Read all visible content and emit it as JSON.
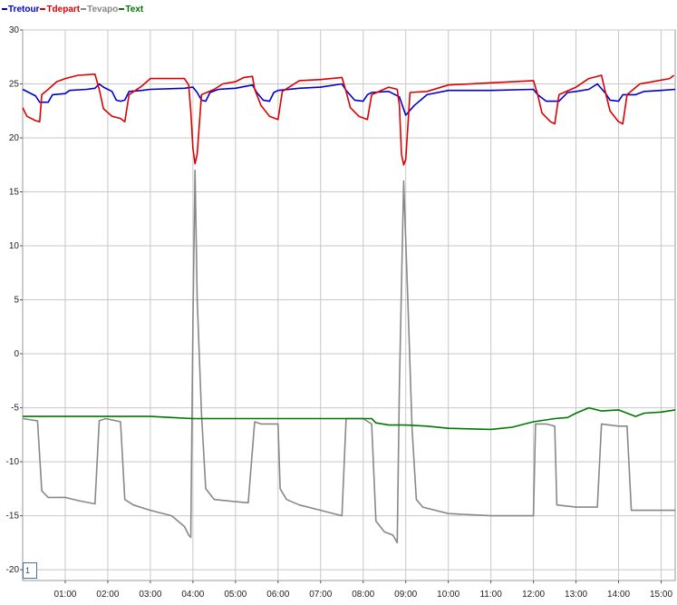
{
  "chart_data": {
    "type": "line",
    "title": "",
    "xlabel": "",
    "ylabel": "",
    "xlim": [
      0.0,
      15.33
    ],
    "ylim": [
      -21,
      30
    ],
    "y_ticks": [
      30,
      25,
      20,
      15,
      10,
      5,
      0,
      -5,
      -10,
      -15,
      -20
    ],
    "x_ticks": [
      {
        "value": 1,
        "label": "01:00"
      },
      {
        "value": 2,
        "label": "02:00"
      },
      {
        "value": 3,
        "label": "03:00"
      },
      {
        "value": 4,
        "label": "04:00"
      },
      {
        "value": 5,
        "label": "05:00"
      },
      {
        "value": 6,
        "label": "06:00"
      },
      {
        "value": 7,
        "label": "07:00"
      },
      {
        "value": 8,
        "label": "08:00"
      },
      {
        "value": 9,
        "label": "09:00"
      },
      {
        "value": 10,
        "label": "10:00"
      },
      {
        "value": 11,
        "label": "11:00"
      },
      {
        "value": 12,
        "label": "12:00"
      },
      {
        "value": 13,
        "label": "13:00"
      },
      {
        "value": 14,
        "label": "14:00"
      },
      {
        "value": 15,
        "label": "15:00"
      }
    ],
    "grid": true,
    "legend_position": "top-left",
    "series": [
      {
        "name": "Tretour",
        "color": "#0000cc",
        "points": [
          [
            0.0,
            24.5
          ],
          [
            0.3,
            23.9
          ],
          [
            0.4,
            23.3
          ],
          [
            0.6,
            23.3
          ],
          [
            0.7,
            24.0
          ],
          [
            1.0,
            24.1
          ],
          [
            1.1,
            24.4
          ],
          [
            1.5,
            24.5
          ],
          [
            1.7,
            24.6
          ],
          [
            1.8,
            25.0
          ],
          [
            1.9,
            24.7
          ],
          [
            2.1,
            24.3
          ],
          [
            2.2,
            23.5
          ],
          [
            2.3,
            23.4
          ],
          [
            2.4,
            23.5
          ],
          [
            2.5,
            24.3
          ],
          [
            2.8,
            24.4
          ],
          [
            3.0,
            24.5
          ],
          [
            3.8,
            24.6
          ],
          [
            4.0,
            24.7
          ],
          [
            4.1,
            24.2
          ],
          [
            4.2,
            23.5
          ],
          [
            4.3,
            23.4
          ],
          [
            4.4,
            24.2
          ],
          [
            4.6,
            24.5
          ],
          [
            5.0,
            24.6
          ],
          [
            5.4,
            24.9
          ],
          [
            5.5,
            24.2
          ],
          [
            5.65,
            23.5
          ],
          [
            5.8,
            23.4
          ],
          [
            5.9,
            24.2
          ],
          [
            6.0,
            24.4
          ],
          [
            6.5,
            24.6
          ],
          [
            7.0,
            24.7
          ],
          [
            7.5,
            25.0
          ],
          [
            7.6,
            24.4
          ],
          [
            7.8,
            23.5
          ],
          [
            8.0,
            23.4
          ],
          [
            8.1,
            24.0
          ],
          [
            8.2,
            24.2
          ],
          [
            8.6,
            24.3
          ],
          [
            8.85,
            23.8
          ],
          [
            9.0,
            22.1
          ],
          [
            9.2,
            23.0
          ],
          [
            9.5,
            24.0
          ],
          [
            10.0,
            24.4
          ],
          [
            11.0,
            24.4
          ],
          [
            12.0,
            24.5
          ],
          [
            12.1,
            24.0
          ],
          [
            12.3,
            23.4
          ],
          [
            12.6,
            23.4
          ],
          [
            12.8,
            24.2
          ],
          [
            13.0,
            24.3
          ],
          [
            13.3,
            24.5
          ],
          [
            13.5,
            25.0
          ],
          [
            13.7,
            24.1
          ],
          [
            13.8,
            23.5
          ],
          [
            14.0,
            23.4
          ],
          [
            14.1,
            24.0
          ],
          [
            14.4,
            24.0
          ],
          [
            14.6,
            24.3
          ],
          [
            15.0,
            24.4
          ],
          [
            15.33,
            24.5
          ]
        ]
      },
      {
        "name": "Tdepart",
        "color": "#dd0000",
        "points": [
          [
            0.0,
            22.8
          ],
          [
            0.1,
            22.0
          ],
          [
            0.3,
            21.6
          ],
          [
            0.4,
            21.5
          ],
          [
            0.45,
            24.0
          ],
          [
            0.6,
            24.5
          ],
          [
            0.8,
            25.2
          ],
          [
            1.0,
            25.5
          ],
          [
            1.3,
            25.8
          ],
          [
            1.7,
            25.9
          ],
          [
            1.8,
            24.5
          ],
          [
            1.9,
            22.7
          ],
          [
            2.1,
            22.0
          ],
          [
            2.3,
            21.8
          ],
          [
            2.4,
            21.5
          ],
          [
            2.5,
            24.0
          ],
          [
            2.8,
            24.8
          ],
          [
            3.0,
            25.5
          ],
          [
            3.8,
            25.5
          ],
          [
            3.9,
            24.9
          ],
          [
            3.95,
            22.5
          ],
          [
            4.0,
            19.0
          ],
          [
            4.05,
            17.6
          ],
          [
            4.1,
            18.5
          ],
          [
            4.2,
            24.0
          ],
          [
            4.5,
            24.5
          ],
          [
            4.7,
            25.0
          ],
          [
            5.0,
            25.2
          ],
          [
            5.2,
            25.6
          ],
          [
            5.4,
            25.7
          ],
          [
            5.45,
            24.5
          ],
          [
            5.6,
            23.0
          ],
          [
            5.8,
            22.0
          ],
          [
            6.0,
            21.7
          ],
          [
            6.1,
            24.3
          ],
          [
            6.5,
            25.3
          ],
          [
            7.0,
            25.4
          ],
          [
            7.5,
            25.6
          ],
          [
            7.6,
            24.3
          ],
          [
            7.7,
            22.8
          ],
          [
            7.9,
            22.0
          ],
          [
            8.1,
            21.7
          ],
          [
            8.2,
            24.0
          ],
          [
            8.6,
            24.7
          ],
          [
            8.8,
            24.5
          ],
          [
            8.85,
            23.0
          ],
          [
            8.9,
            18.5
          ],
          [
            8.95,
            17.5
          ],
          [
            9.0,
            18.0
          ],
          [
            9.1,
            24.2
          ],
          [
            9.5,
            24.3
          ],
          [
            10.0,
            24.9
          ],
          [
            11.0,
            25.1
          ],
          [
            12.0,
            25.3
          ],
          [
            12.1,
            24.0
          ],
          [
            12.2,
            22.3
          ],
          [
            12.4,
            21.5
          ],
          [
            12.5,
            21.3
          ],
          [
            12.6,
            24.0
          ],
          [
            13.0,
            24.7
          ],
          [
            13.3,
            25.5
          ],
          [
            13.6,
            25.8
          ],
          [
            13.7,
            24.1
          ],
          [
            13.8,
            22.5
          ],
          [
            14.0,
            21.5
          ],
          [
            14.1,
            21.3
          ],
          [
            14.2,
            24.0
          ],
          [
            14.5,
            25.0
          ],
          [
            14.8,
            25.2
          ],
          [
            15.2,
            25.5
          ],
          [
            15.3,
            25.8
          ]
        ]
      },
      {
        "name": "Tevapo",
        "color": "#888888",
        "points": [
          [
            0.0,
            -6.0
          ],
          [
            0.35,
            -6.2
          ],
          [
            0.45,
            -12.7
          ],
          [
            0.6,
            -13.3
          ],
          [
            1.0,
            -13.3
          ],
          [
            1.3,
            -13.6
          ],
          [
            1.7,
            -13.9
          ],
          [
            1.8,
            -6.2
          ],
          [
            1.95,
            -6.0
          ],
          [
            2.3,
            -6.3
          ],
          [
            2.4,
            -13.5
          ],
          [
            2.6,
            -14.0
          ],
          [
            3.0,
            -14.5
          ],
          [
            3.5,
            -15.0
          ],
          [
            3.8,
            -16.0
          ],
          [
            3.9,
            -16.8
          ],
          [
            3.95,
            -17.0
          ],
          [
            4.0,
            3.0
          ],
          [
            4.05,
            17.0
          ],
          [
            4.1,
            5.0
          ],
          [
            4.2,
            -5.5
          ],
          [
            4.3,
            -12.5
          ],
          [
            4.5,
            -13.5
          ],
          [
            5.0,
            -13.7
          ],
          [
            5.3,
            -13.8
          ],
          [
            5.45,
            -6.3
          ],
          [
            5.6,
            -6.5
          ],
          [
            6.0,
            -6.5
          ],
          [
            6.05,
            -12.5
          ],
          [
            6.2,
            -13.5
          ],
          [
            6.5,
            -14.0
          ],
          [
            7.0,
            -14.5
          ],
          [
            7.5,
            -15.0
          ],
          [
            7.6,
            -6.0
          ],
          [
            8.0,
            -6.0
          ],
          [
            8.2,
            -6.5
          ],
          [
            8.3,
            -15.5
          ],
          [
            8.5,
            -16.5
          ],
          [
            8.7,
            -16.8
          ],
          [
            8.8,
            -17.5
          ],
          [
            8.85,
            -3.0
          ],
          [
            8.95,
            16.0
          ],
          [
            9.05,
            5.0
          ],
          [
            9.15,
            -7.0
          ],
          [
            9.25,
            -13.5
          ],
          [
            9.4,
            -14.2
          ],
          [
            10.0,
            -14.8
          ],
          [
            11.0,
            -15.0
          ],
          [
            12.0,
            -15.0
          ],
          [
            12.05,
            -6.5
          ],
          [
            12.3,
            -6.5
          ],
          [
            12.5,
            -6.7
          ],
          [
            12.55,
            -14.0
          ],
          [
            13.0,
            -14.2
          ],
          [
            13.5,
            -14.2
          ],
          [
            13.6,
            -6.5
          ],
          [
            14.0,
            -6.7
          ],
          [
            14.2,
            -6.7
          ],
          [
            14.3,
            -14.5
          ],
          [
            14.7,
            -14.5
          ],
          [
            15.33,
            -14.5
          ]
        ]
      },
      {
        "name": "Text",
        "color": "#007700",
        "points": [
          [
            0.0,
            -5.8
          ],
          [
            1.0,
            -5.8
          ],
          [
            2.0,
            -5.8
          ],
          [
            3.0,
            -5.8
          ],
          [
            3.5,
            -5.9
          ],
          [
            4.0,
            -6.0
          ],
          [
            5.0,
            -6.0
          ],
          [
            6.0,
            -6.0
          ],
          [
            7.0,
            -6.0
          ],
          [
            8.0,
            -6.0
          ],
          [
            8.2,
            -6.0
          ],
          [
            8.3,
            -6.4
          ],
          [
            8.6,
            -6.6
          ],
          [
            9.0,
            -6.6
          ],
          [
            9.5,
            -6.7
          ],
          [
            10.0,
            -6.9
          ],
          [
            11.0,
            -7.0
          ],
          [
            11.5,
            -6.8
          ],
          [
            11.8,
            -6.5
          ],
          [
            12.0,
            -6.3
          ],
          [
            12.5,
            -6.0
          ],
          [
            12.8,
            -5.9
          ],
          [
            13.0,
            -5.5
          ],
          [
            13.3,
            -5.0
          ],
          [
            13.6,
            -5.3
          ],
          [
            14.0,
            -5.2
          ],
          [
            14.4,
            -5.8
          ],
          [
            14.6,
            -5.5
          ],
          [
            15.0,
            -5.4
          ],
          [
            15.33,
            -5.2
          ]
        ]
      }
    ]
  },
  "zoom_label": "1"
}
